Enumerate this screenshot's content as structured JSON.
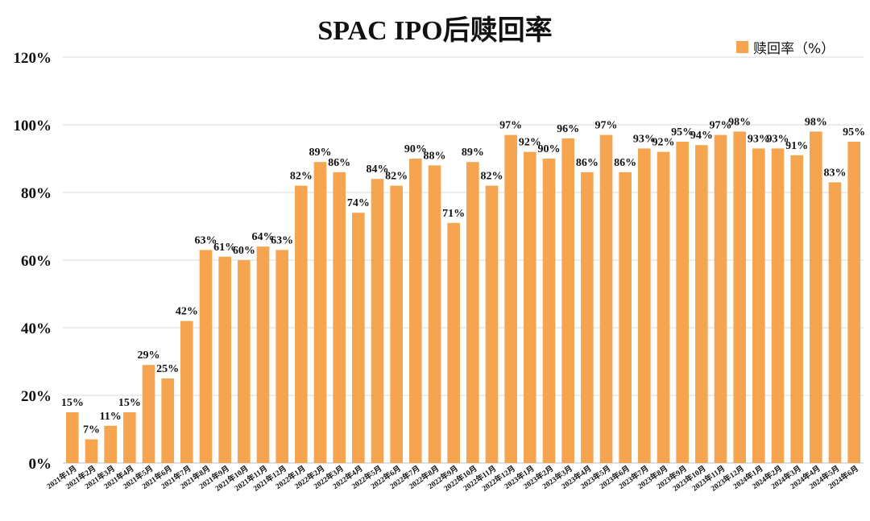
{
  "colors": {
    "bar": "#F5A54F",
    "grid": "#D9D9D9",
    "axis": "#BFBFBF",
    "text": "#111111"
  },
  "chart_data": {
    "type": "bar",
    "title": "SPAC IPO后赎回率",
    "legend": {
      "label": "赎回率（%）",
      "position": "top-right"
    },
    "xlabel": "",
    "ylabel": "",
    "ylim": [
      0,
      120
    ],
    "yticks": [
      "0%",
      "20%",
      "40%",
      "60%",
      "80%",
      "100%",
      "120%"
    ],
    "grid": true,
    "categories": [
      "2021年1月",
      "2021年2月",
      "2021年3月",
      "2021年4月",
      "2021年5月",
      "2021年6月",
      "2021年7月",
      "2021年8月",
      "2021年9月",
      "2021年10月",
      "2021年11月",
      "2021年12月",
      "2022年1月",
      "2022年2月",
      "2022年3月",
      "2022年4月",
      "2022年5月",
      "2022年6月",
      "2022年7月",
      "2022年8月",
      "2022年9月",
      "2022年10月",
      "2022年11月",
      "2022年12月",
      "2023年1月",
      "2023年2月",
      "2023年3月",
      "2023年4月",
      "2023年5月",
      "2023年6月",
      "2023年7月",
      "2023年8月",
      "2023年9月",
      "2023年10月",
      "2023年11月",
      "2023年12月",
      "2024年1月",
      "2024年2月",
      "2024年3月",
      "2024年4月",
      "2024年5月",
      "2024年6月"
    ],
    "values": [
      15,
      7,
      11,
      15,
      29,
      25,
      42,
      63,
      61,
      60,
      64,
      63,
      82,
      89,
      86,
      74,
      84,
      82,
      90,
      88,
      71,
      89,
      82,
      97,
      92,
      90,
      96,
      86,
      97,
      86,
      93,
      92,
      95,
      94,
      97,
      98,
      93,
      93,
      91,
      98,
      83,
      95
    ],
    "data_labels": [
      "15%",
      "7%",
      "11%",
      "15%",
      "29%",
      "25%",
      "42%",
      "63%",
      "61%",
      "60%",
      "64%",
      "63%",
      "82%",
      "89%",
      "86%",
      "74%",
      "84%",
      "82%",
      "90%",
      "88%",
      "71%",
      "89%",
      "82%",
      "97%",
      "92%",
      "90%",
      "96%",
      "86%",
      "97%",
      "86%",
      "93%",
      "92%",
      "95%",
      "94%",
      "97%",
      "98%",
      "93%",
      "93%",
      "91%",
      "98%",
      "83%",
      "95%"
    ]
  }
}
